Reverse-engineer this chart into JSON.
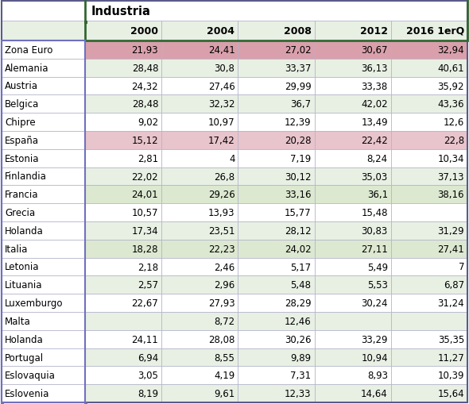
{
  "title": "Industria",
  "columns": [
    "2000",
    "2004",
    "2008",
    "2012",
    "2016 1erQ"
  ],
  "rows": [
    {
      "country": "Zona Euro",
      "values": [
        "21,93",
        "24,41",
        "27,02",
        "30,67",
        "32,94"
      ],
      "bg": "#d9a0ac"
    },
    {
      "country": "Alemania",
      "values": [
        "28,48",
        "30,8",
        "33,37",
        "36,13",
        "40,61"
      ],
      "bg": "#e8f0e4"
    },
    {
      "country": "Austria",
      "values": [
        "24,32",
        "27,46",
        "29,99",
        "33,38",
        "35,92"
      ],
      "bg": "#ffffff"
    },
    {
      "country": "Belgica",
      "values": [
        "28,48",
        "32,32",
        "36,7",
        "42,02",
        "43,36"
      ],
      "bg": "#e8f0e4"
    },
    {
      "country": "Chipre",
      "values": [
        "9,02",
        "10,97",
        "12,39",
        "13,49",
        "12,6"
      ],
      "bg": "#ffffff"
    },
    {
      "country": "España",
      "values": [
        "15,12",
        "17,42",
        "20,28",
        "22,42",
        "22,8"
      ],
      "bg": "#e8c4cc"
    },
    {
      "country": "Estonia",
      "values": [
        "2,81",
        "4",
        "7,19",
        "8,24",
        "10,34"
      ],
      "bg": "#ffffff"
    },
    {
      "country": "Finlandia",
      "values": [
        "22,02",
        "26,8",
        "30,12",
        "35,03",
        "37,13"
      ],
      "bg": "#e8f0e4"
    },
    {
      "country": "Francia",
      "values": [
        "24,01",
        "29,26",
        "33,16",
        "36,1",
        "38,16"
      ],
      "bg": "#dce8d0"
    },
    {
      "country": "Grecia",
      "values": [
        "10,57",
        "13,93",
        "15,77",
        "15,48",
        ""
      ],
      "bg": "#ffffff"
    },
    {
      "country": "Holanda",
      "values": [
        "17,34",
        "23,51",
        "28,12",
        "30,83",
        "31,29"
      ],
      "bg": "#e8f0e4"
    },
    {
      "country": "Italia",
      "values": [
        "18,28",
        "22,23",
        "24,02",
        "27,11",
        "27,41"
      ],
      "bg": "#dce8d0"
    },
    {
      "country": "Letonia",
      "values": [
        "2,18",
        "2,46",
        "5,17",
        "5,49",
        "7"
      ],
      "bg": "#ffffff"
    },
    {
      "country": "Lituania",
      "values": [
        "2,57",
        "2,96",
        "5,48",
        "5,53",
        "6,87"
      ],
      "bg": "#e8f0e4"
    },
    {
      "country": "Luxemburgo",
      "values": [
        "22,67",
        "27,93",
        "28,29",
        "30,24",
        "31,24"
      ],
      "bg": "#ffffff"
    },
    {
      "country": "Malta",
      "values": [
        "",
        "8,72",
        "12,46",
        "",
        ""
      ],
      "bg": "#e8f0e4"
    },
    {
      "country": "Holanda",
      "values": [
        "24,11",
        "28,08",
        "30,26",
        "33,29",
        "35,35"
      ],
      "bg": "#ffffff"
    },
    {
      "country": "Portugal",
      "values": [
        "6,94",
        "8,55",
        "9,89",
        "10,94",
        "11,27"
      ],
      "bg": "#e8f0e4"
    },
    {
      "country": "Eslovaquia",
      "values": [
        "3,05",
        "4,19",
        "7,31",
        "8,93",
        "10,39"
      ],
      "bg": "#ffffff"
    },
    {
      "country": "Eslovenia",
      "values": [
        "8,19",
        "9,61",
        "12,33",
        "14,64",
        "15,64"
      ],
      "bg": "#e8f0e4"
    }
  ],
  "header_bg": "#e8f0e4",
  "outer_border": "#5a5a8a",
  "dark_border": "#336633",
  "purple_border": "#7070c0",
  "thin_border": "#b0b0c8",
  "font_size": 8.5,
  "header_font_size": 9.0,
  "title_font_size": 10.5
}
